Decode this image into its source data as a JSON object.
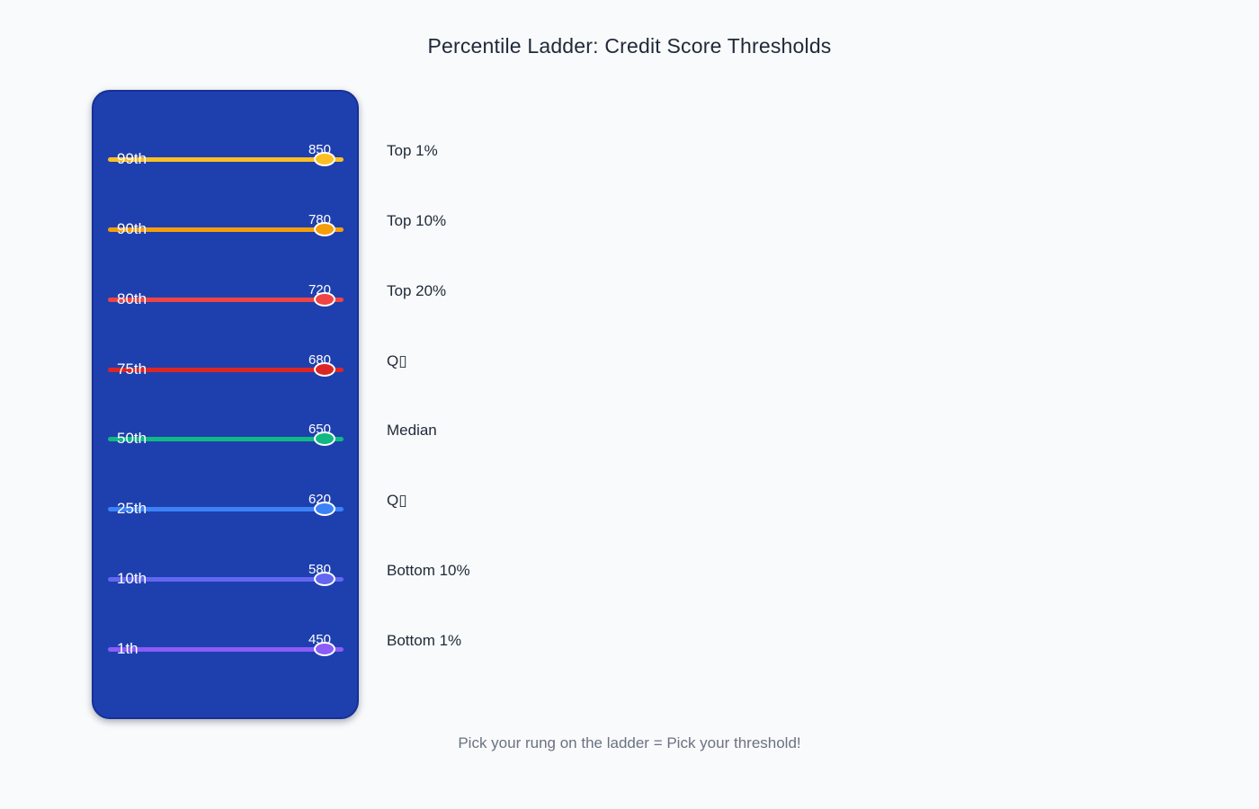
{
  "page": {
    "title": "Percentile Ladder: Credit Score Thresholds",
    "caption": "Pick your rung on the ladder = Pick your threshold!",
    "background_color": "#f8fafc",
    "ladder_panel_color": "#1e40af",
    "ladder_border_color": "#182f96",
    "title_color": "#1f2937",
    "caption_color": "#6b7280"
  },
  "ladder": {
    "rungs": [
      {
        "percentile": "99th",
        "value": "850",
        "label": "Top 1%",
        "color": "#fbbf24"
      },
      {
        "percentile": "90th",
        "value": "780",
        "label": "Top 10%",
        "color": "#f59e0b"
      },
      {
        "percentile": "80th",
        "value": "720",
        "label": "Top 20%",
        "color": "#ef4444"
      },
      {
        "percentile": "75th",
        "value": "680",
        "label": "Q▯",
        "color": "#dc2626"
      },
      {
        "percentile": "50th",
        "value": "650",
        "label": "Median",
        "color": "#10b981"
      },
      {
        "percentile": "25th",
        "value": "620",
        "label": "Q▯",
        "color": "#3b82f6"
      },
      {
        "percentile": "10th",
        "value": "580",
        "label": "Bottom 10%",
        "color": "#6366f1"
      },
      {
        "percentile": "1th",
        "value": "450",
        "label": "Bottom 1%",
        "color": "#8b5cf6"
      }
    ]
  },
  "chart_data": {
    "type": "table",
    "title": "Percentile Ladder: Credit Score Thresholds",
    "categories": [
      "99th",
      "90th",
      "80th",
      "75th",
      "50th",
      "25th",
      "10th",
      "1th"
    ],
    "values": [
      850,
      780,
      720,
      680,
      650,
      620,
      580,
      450
    ],
    "point_labels": [
      "Top 1%",
      "Top 10%",
      "Top 20%",
      "Q▯",
      "Median",
      "Q▯",
      "Bottom 10%",
      "Bottom 1%"
    ],
    "colors": [
      "#fbbf24",
      "#f59e0b",
      "#ef4444",
      "#dc2626",
      "#10b981",
      "#3b82f6",
      "#6366f1",
      "#8b5cf6"
    ],
    "xlabel": "",
    "ylabel": "",
    "legend": false,
    "grid": false,
    "annotation": "Pick your rung on the ladder = Pick your threshold!"
  }
}
